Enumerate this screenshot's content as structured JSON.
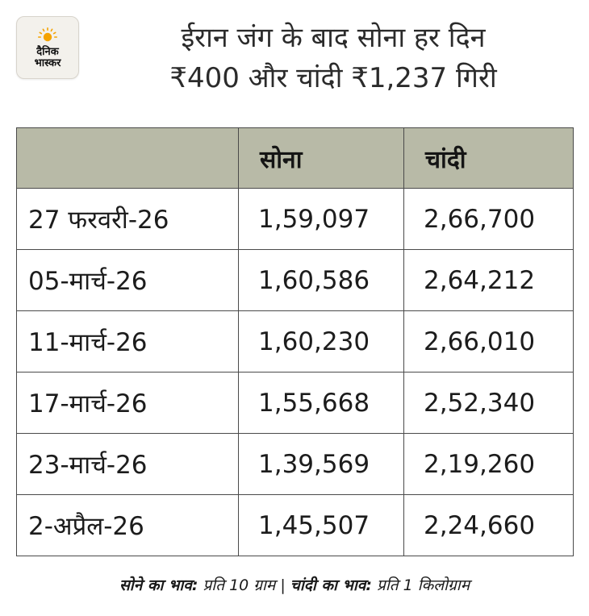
{
  "logo": {
    "line1": "दैनिक",
    "line2": "भास्कर",
    "sun_color": "#f5a300"
  },
  "headline": {
    "line1": "ईरान जंग के बाद सोना हर दिन",
    "line2": "₹400 और चांदी ₹1,237 गिरी"
  },
  "table": {
    "header_bg": "#b8baa7",
    "columns": [
      "",
      "सोना",
      "चांदी"
    ],
    "rows": [
      {
        "date": "27 फरवरी-26",
        "gold": "1,59,097",
        "silver": "2,66,700"
      },
      {
        "date": "05-मार्च-26",
        "gold": "1,60,586",
        "silver": "2,64,212"
      },
      {
        "date": "11-मार्च-26",
        "gold": "1,60,230",
        "silver": "2,66,010"
      },
      {
        "date": "17-मार्च-26",
        "gold": "1,55,668",
        "silver": "2,52,340"
      },
      {
        "date": "23-मार्च-26",
        "gold": "1,39,569",
        "silver": "2,19,260"
      },
      {
        "date": "2-अप्रैल-26",
        "gold": "1,45,507",
        "silver": "2,24,660"
      }
    ]
  },
  "footer": {
    "gold_label": "सोने का भाव:",
    "gold_unit": " प्रति 10 ग्राम | ",
    "silver_label": "चांदी का भाव:",
    "silver_unit": " प्रति 1 किलोग्राम"
  }
}
